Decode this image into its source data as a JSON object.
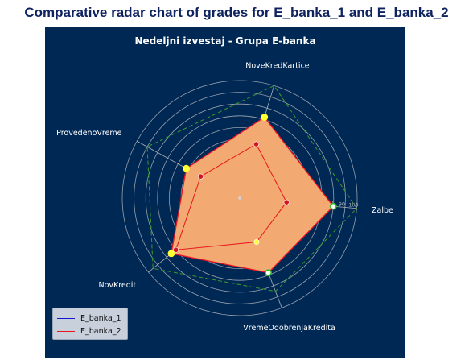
{
  "figure_title": "Comparative radar chart of grades for E_banka_1 and E_banka_2",
  "colors": {
    "panel_bg": "#002855",
    "grid": "#c8c8c8",
    "series1_line": "#1515d6",
    "series1_fill": "#cdd9ee",
    "series2_line": "#e8161c",
    "series2_fill": "#f6a86d",
    "marker_yellow": "#ffff33",
    "marker_red": "#d4141e",
    "marker_green": "#2bbf2b",
    "dash_green": "#3c9a2a",
    "dash_orange": "#f0883c"
  },
  "chart_data": {
    "type": "radar",
    "title": "Nedeljni izvestaj - Grupa E-banka",
    "axes": [
      "Zalbe",
      "NoveKredKartice",
      "ProvedenoVreme",
      "NovKredit",
      "VremeOdobrenjaKredita"
    ],
    "rlim": [
      0,
      100
    ],
    "rticks": [
      10,
      20,
      30,
      40,
      50,
      60,
      70,
      80,
      90,
      100
    ],
    "series": [
      {
        "name": "E_banka_1",
        "values": [
          80,
          72,
          52,
          75,
          68
        ]
      },
      {
        "name": "E_banka_2",
        "values": [
          80,
          72,
          52,
          75,
          68
        ]
      }
    ],
    "inner_points": [
      40,
      48,
      38,
      70,
      40
    ],
    "reference_dashed_green": [
      100,
      100,
      90,
      95,
      85
    ],
    "reference_dashed_orange": [
      30,
      60,
      50,
      60,
      50
    ],
    "legend_position": "lower left",
    "grid": true
  }
}
